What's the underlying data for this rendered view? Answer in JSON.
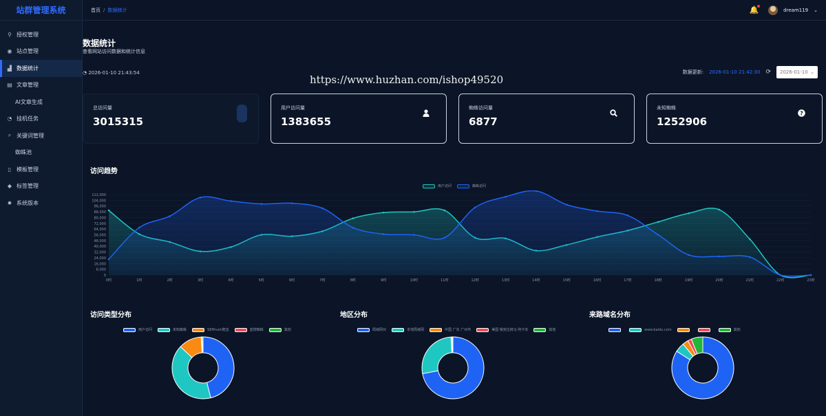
{
  "app": {
    "title": "站群管理系统"
  },
  "sidebar": {
    "items": [
      {
        "label": "授权管理",
        "icon": "key-icon",
        "glyph": "⚲"
      },
      {
        "label": "站点管理",
        "icon": "globe-icon",
        "glyph": "◉"
      },
      {
        "label": "数据统计",
        "icon": "chart-icon",
        "glyph": "▟",
        "active": true
      },
      {
        "label": "文章管理",
        "icon": "document-icon",
        "glyph": "▤"
      },
      {
        "label": "AI文章生成",
        "icon": "",
        "glyph": "",
        "sub": true
      },
      {
        "label": "挂机任务",
        "icon": "clock-icon",
        "glyph": "◔"
      },
      {
        "label": "关键词管理",
        "icon": "search-icon",
        "glyph": "⌕"
      },
      {
        "label": "蜘蛛池",
        "icon": "",
        "glyph": "",
        "sub": true
      },
      {
        "label": "模板管理",
        "icon": "file-icon",
        "glyph": "▯"
      },
      {
        "label": "标签管理",
        "icon": "tag-icon",
        "glyph": "◆"
      },
      {
        "label": "系统版本",
        "icon": "gear-icon",
        "glyph": "✹"
      }
    ]
  },
  "header": {
    "breadcrumb": [
      "首页",
      "数据统计"
    ],
    "user": "dream119"
  },
  "page": {
    "title": "数据统计",
    "subtitle": "查看网站访问数据和统计信息",
    "clock": "2026-01-10 21:43:54",
    "watermark": "https://www.huzhan.com/ishop49520",
    "update_label": "数据更新:",
    "update_time": "2026-01-10 21:42:30",
    "date_value": "2026-01-10"
  },
  "stats": [
    {
      "label": "总访问量",
      "value": "3015315",
      "icon": "pill-icon"
    },
    {
      "label": "用户访问量",
      "value": "1383655",
      "icon": "user-icon"
    },
    {
      "label": "蜘蛛访问量",
      "value": "6877",
      "icon": "search-icon"
    },
    {
      "label": "未知蜘蛛",
      "value": "1252906",
      "icon": "question-icon"
    }
  ],
  "sections": {
    "trend": "访问趋势",
    "type": "访问类型分布",
    "region": "地区分布",
    "domain": "来路域名分布"
  },
  "colors": {
    "cyan": "#1fc7c3",
    "blue": "#1f63f5",
    "orange": "#f98a12",
    "red": "#f24a54",
    "green": "#20b637"
  },
  "chart_data": [
    {
      "type": "line",
      "title": "访问趋势",
      "x": [
        "0时",
        "1时",
        "2时",
        "3时",
        "4时",
        "5时",
        "6时",
        "7时",
        "8时",
        "9时",
        "10时",
        "11时",
        "12时",
        "13时",
        "14时",
        "15时",
        "16时",
        "17时",
        "18时",
        "19时",
        "20时",
        "21时",
        "22时",
        "23时"
      ],
      "series": [
        {
          "name": "用户访问",
          "color": "#1fc7c3",
          "values": [
            90000,
            57000,
            46000,
            33000,
            39000,
            56000,
            54000,
            61000,
            79000,
            87000,
            88000,
            90000,
            52000,
            51000,
            34000,
            42000,
            53000,
            62000,
            74000,
            86000,
            91000,
            50000,
            0,
            0
          ]
        },
        {
          "name": "蜘蛛访问",
          "color": "#1f63f5",
          "values": [
            22000,
            66000,
            82000,
            108000,
            103000,
            99000,
            100000,
            93000,
            66000,
            57000,
            56000,
            52000,
            94000,
            109000,
            117000,
            98000,
            89000,
            83000,
            56000,
            28000,
            26000,
            25000,
            0,
            0
          ]
        }
      ],
      "ylim": [
        0,
        112000
      ],
      "yticks": [
        "112,000",
        "104,000",
        "96,000",
        "88,000",
        "80,000",
        "72,000",
        "64,000",
        "56,000",
        "48,000",
        "40,000",
        "32,000",
        "24,000",
        "16,000",
        "8,000",
        "0"
      ],
      "legend": "top-center"
    },
    {
      "type": "pie",
      "title": "访问类型分布",
      "categories": [
        "用户访问",
        "未知蜘蛛",
        "SEMrush爬虫",
        "蓝搜蜘蛛",
        "其他"
      ],
      "colors": [
        "#1f63f5",
        "#1fc7c3",
        "#f98a12",
        "#f24a54",
        "#20b637"
      ],
      "values": [
        46,
        41,
        12,
        0.5,
        0.5
      ]
    },
    {
      "type": "pie",
      "title": "地区分布",
      "categories": [
        "局域网对",
        "本地局域网",
        "中国 广东 广州市",
        "美国 俄克拉荷马 阿卡本",
        "其他"
      ],
      "colors": [
        "#1f63f5",
        "#1fc7c3",
        "#f98a12",
        "#f24a54",
        "#20b637"
      ],
      "values": [
        72,
        27,
        0.5,
        0.3,
        0.2
      ]
    },
    {
      "type": "pie",
      "title": "来路域名分布",
      "categories": [
        "",
        "www.baidu.com",
        "",
        "",
        "其他"
      ],
      "colors": [
        "#1f63f5",
        "#1fc7c3",
        "#f98a12",
        "#f24a54",
        "#20b637"
      ],
      "values": [
        84,
        5,
        3,
        2,
        6
      ]
    }
  ]
}
